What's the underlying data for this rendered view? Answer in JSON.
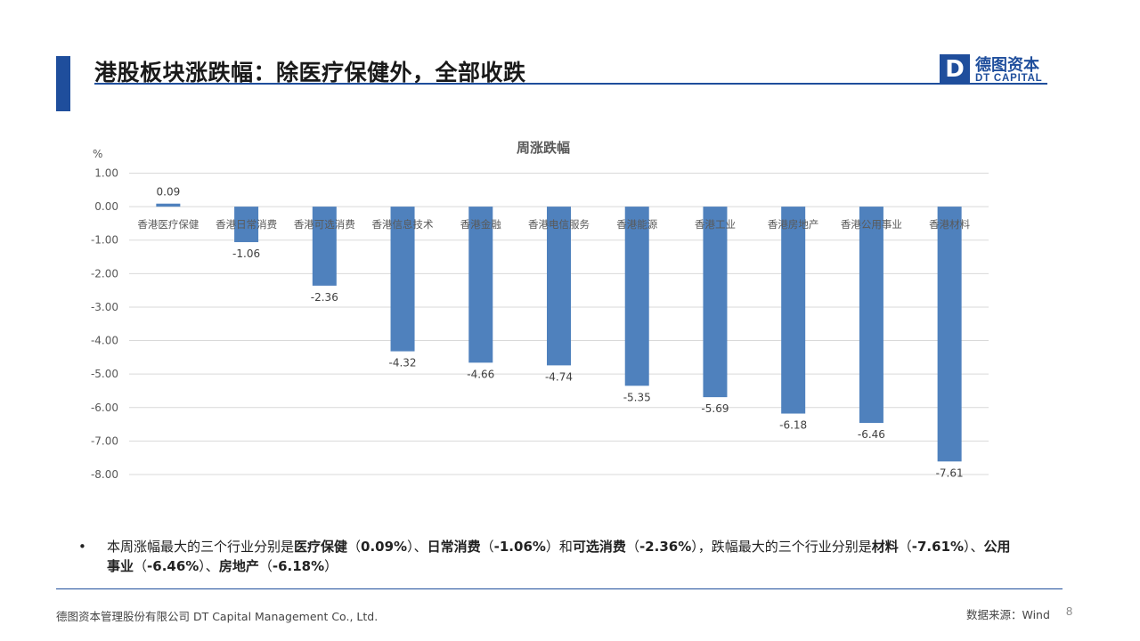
{
  "header": {
    "title": "港股板块涨跌幅：除医疗保健外，全部收跌",
    "logo_mark": "D",
    "logo_cn": "德图资本",
    "logo_en": "DT CAPITAL"
  },
  "chart_data": {
    "type": "bar",
    "title": "周涨跌幅",
    "ylabel": "%",
    "ylim": [
      -8,
      1
    ],
    "yticks": [
      "1.00",
      "0.00",
      "-1.00",
      "-2.00",
      "-3.00",
      "-4.00",
      "-5.00",
      "-6.00",
      "-7.00",
      "-8.00"
    ],
    "grid": true,
    "categories": [
      "香港医疗保健",
      "香港日常消费",
      "香港可选消费",
      "香港信息技术",
      "香港金融",
      "香港电信服务",
      "香港能源",
      "香港工业",
      "香港房地产",
      "香港公用事业",
      "香港材料"
    ],
    "values": [
      0.09,
      -1.06,
      -2.36,
      -4.32,
      -4.66,
      -4.74,
      -5.35,
      -5.69,
      -6.18,
      -6.46,
      -7.61
    ],
    "labels": [
      "0.09",
      "-1.06",
      "-2.36",
      "-4.32",
      "-4.66",
      "-4.74",
      "-5.35",
      "-5.69",
      "-6.18",
      "-6.46",
      "-7.61"
    ],
    "bar_color": "#4f81bd"
  },
  "summary": {
    "bullet": "•",
    "parts": [
      {
        "text": "本周涨幅最大的三个行业分别是",
        "bold": false
      },
      {
        "text": "医疗保健",
        "bold": true
      },
      {
        "text": "（",
        "bold": false
      },
      {
        "text": "0.09%",
        "bold": true
      },
      {
        "text": "）、",
        "bold": false
      },
      {
        "text": "日常消费",
        "bold": true
      },
      {
        "text": "（",
        "bold": false
      },
      {
        "text": "-1.06%",
        "bold": true
      },
      {
        "text": "）和",
        "bold": false
      },
      {
        "text": "可选消费",
        "bold": true
      },
      {
        "text": "（",
        "bold": false
      },
      {
        "text": "-2.36%",
        "bold": true
      },
      {
        "text": "），跌幅最大的三个行业分别是",
        "bold": false
      },
      {
        "text": "材料",
        "bold": true
      },
      {
        "text": "（",
        "bold": false
      },
      {
        "text": "-7.61%",
        "bold": true
      },
      {
        "text": "）、",
        "bold": false
      },
      {
        "text": "公用事业",
        "bold": true
      },
      {
        "text": "（",
        "bold": false
      },
      {
        "text": "-6.46%",
        "bold": true
      },
      {
        "text": "）、",
        "bold": false
      },
      {
        "text": "房地产",
        "bold": true
      },
      {
        "text": "（",
        "bold": false
      },
      {
        "text": "-6.18%",
        "bold": true
      },
      {
        "text": "）",
        "bold": false
      }
    ]
  },
  "footer": {
    "company": "德图资本管理股份有限公司 DT Capital Management Co., Ltd.",
    "source": "数据来源：Wind",
    "page": "8"
  }
}
